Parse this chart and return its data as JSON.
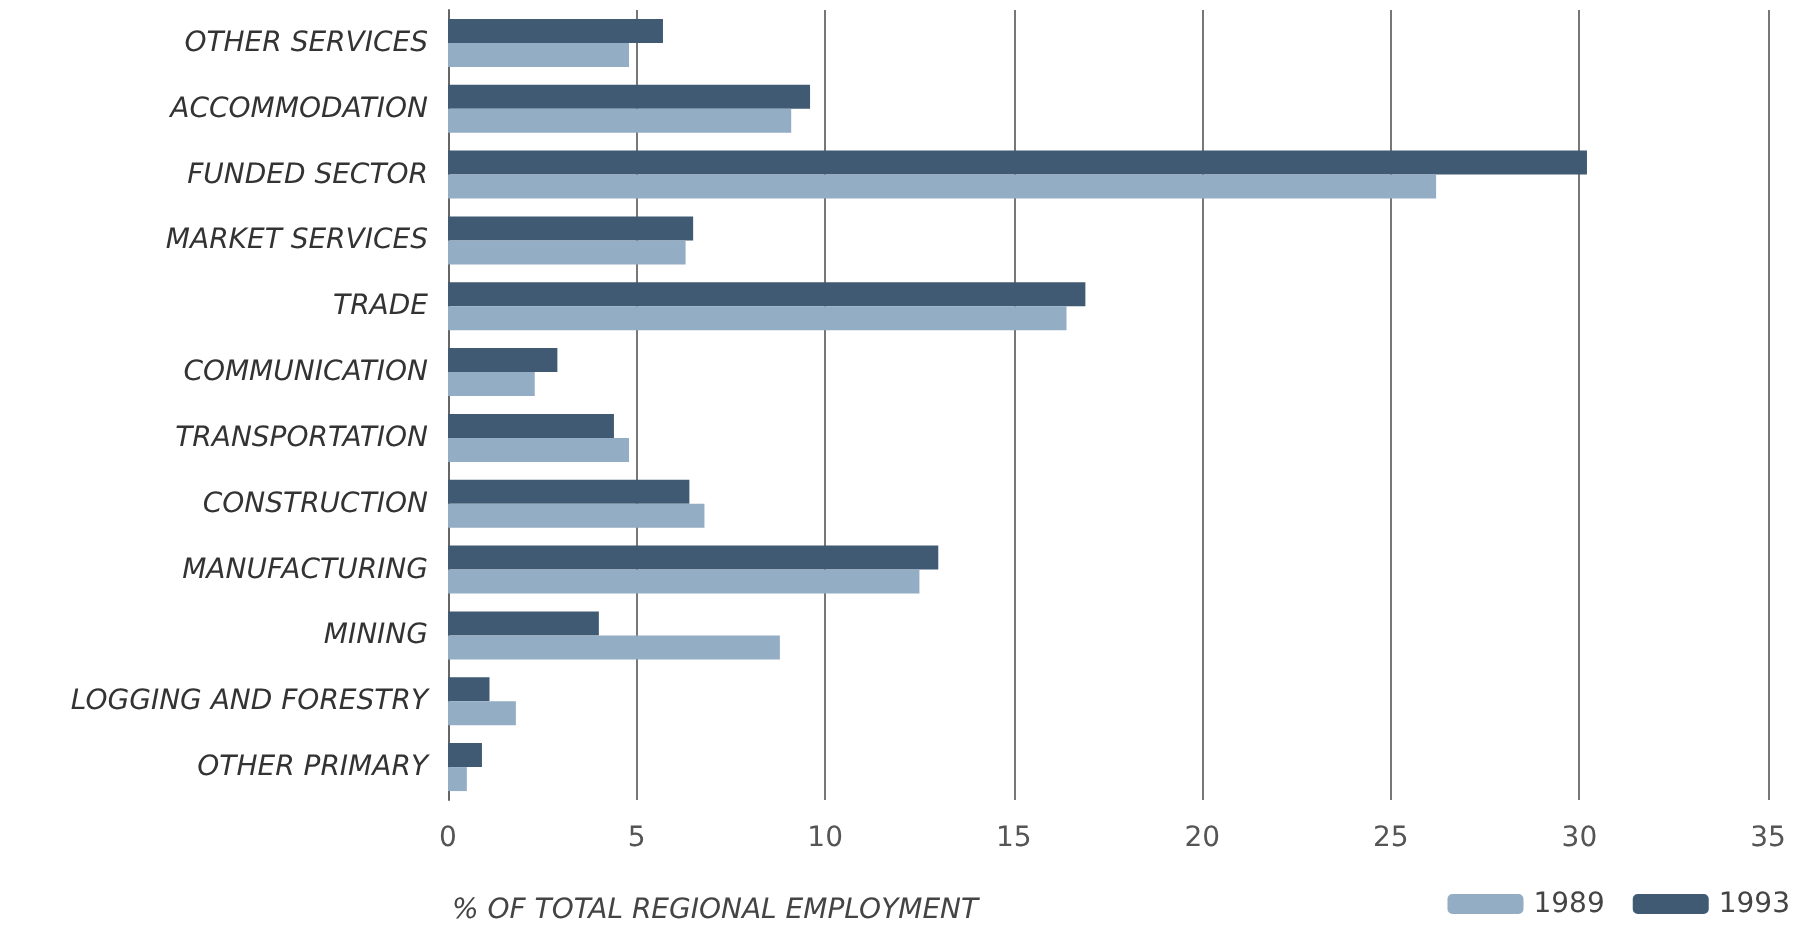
{
  "chart_data": {
    "type": "bar",
    "orientation": "horizontal",
    "xlabel": "% OF TOTAL REGIONAL EMPLOYMENT",
    "categories": [
      "OTHER SERVICES",
      "ACCOMMODATION",
      "FUNDED SECTOR",
      "MARKET SERVICES",
      "TRADE",
      "COMMUNICATION",
      "TRANSPORTATION",
      "CONSTRUCTION",
      "MANUFACTURING",
      "MINING",
      "LOGGING AND FORESTRY",
      "OTHER PRIMARY"
    ],
    "series": [
      {
        "name": "1989",
        "color": "#93adc4",
        "values": [
          4.8,
          9.1,
          26.2,
          6.3,
          16.4,
          2.3,
          4.8,
          6.8,
          12.5,
          8.8,
          1.8,
          0.5
        ]
      },
      {
        "name": "1993",
        "color": "#3f5a72",
        "values": [
          5.7,
          9.6,
          30.2,
          6.5,
          16.9,
          2.9,
          4.4,
          6.4,
          13.0,
          4.0,
          1.1,
          0.9
        ]
      }
    ],
    "xlim": [
      0,
      35
    ],
    "xticks": [
      0,
      5,
      10,
      15,
      20,
      25,
      30,
      35
    ],
    "grid": "x",
    "legend": "bottom right"
  }
}
